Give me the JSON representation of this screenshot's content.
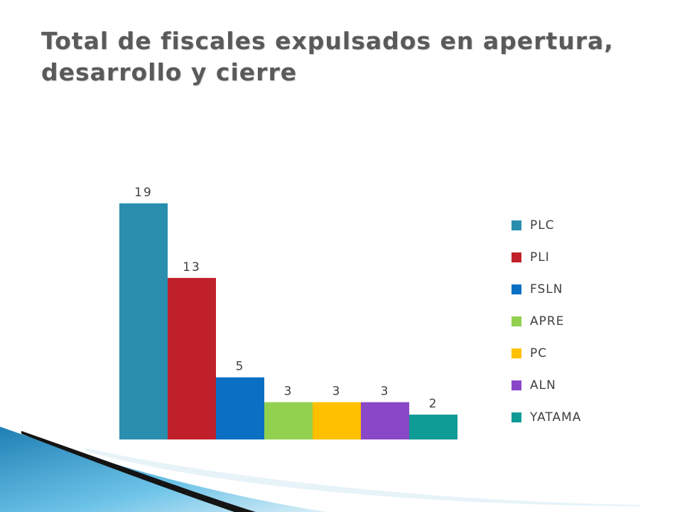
{
  "slide": {
    "title": "Total de fiscales expulsados en apertura, desarrollo y cierre"
  },
  "chart_data": {
    "type": "bar",
    "title": "",
    "xlabel": "",
    "ylabel": "",
    "ylim": [
      0,
      19
    ],
    "grid": false,
    "legend_position": "right",
    "data_labels": true,
    "series": [
      {
        "name": "PLC",
        "values": [
          19
        ],
        "color": "#2a8eae"
      },
      {
        "name": "PLI",
        "values": [
          13
        ],
        "color": "#c0202a"
      },
      {
        "name": "FSLN",
        "values": [
          5
        ],
        "color": "#0b6fc3"
      },
      {
        "name": "APRE",
        "values": [
          3
        ],
        "color": "#92d050"
      },
      {
        "name": "PC",
        "values": [
          3
        ],
        "color": "#ffc000"
      },
      {
        "name": "ALN",
        "values": [
          3
        ],
        "color": "#8a47c8"
      },
      {
        "name": "YATAMA",
        "values": [
          2
        ],
        "color": "#0f9b96"
      }
    ]
  },
  "colors": {
    "title": "#5a5a5a",
    "decoration_blue": "#3aa3d2",
    "decoration_dark": "#111111"
  }
}
